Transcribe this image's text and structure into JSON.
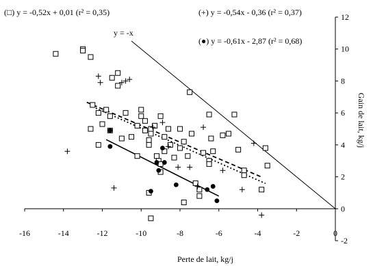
{
  "chart_data": {
    "type": "scatter",
    "xlabel": "Perte de lait, kg/j",
    "ylabel": "Gain de lait, kg/j",
    "xlim": [
      -16,
      0
    ],
    "ylim": [
      -2,
      12
    ],
    "xticks": [
      -16,
      -14,
      -12,
      -10,
      -8,
      -6,
      -4,
      -2,
      0
    ],
    "yticks": [
      -2,
      0,
      2,
      4,
      6,
      8,
      10,
      12
    ],
    "y_axis_side": "right",
    "grid": false,
    "series": [
      {
        "marker": "square",
        "points": [
          [
            -14.4,
            9.7
          ],
          [
            -13.0,
            10.0
          ],
          [
            -13.0,
            9.9
          ],
          [
            -12.6,
            9.5
          ],
          [
            -12.5,
            6.5
          ],
          [
            -12.6,
            5.0
          ],
          [
            -12.2,
            6.0
          ],
          [
            -12.0,
            5.3
          ],
          [
            -11.8,
            6.2
          ],
          [
            -11.6,
            5.8
          ],
          [
            -11.5,
            8.2
          ],
          [
            -11.2,
            7.7
          ],
          [
            -11.2,
            8.5
          ],
          [
            -11.6,
            4.9
          ],
          [
            -12.2,
            4.0
          ],
          [
            -10.8,
            6.0
          ],
          [
            -10.5,
            4.5
          ],
          [
            -10.2,
            5.2
          ],
          [
            -10.0,
            6.2
          ],
          [
            -10.0,
            5.8
          ],
          [
            -9.8,
            5.5
          ],
          [
            -9.8,
            4.9
          ],
          [
            -9.6,
            4.3
          ],
          [
            -9.6,
            4.0
          ],
          [
            -9.5,
            5.0
          ],
          [
            -9.5,
            4.7
          ],
          [
            -9.3,
            5.2
          ],
          [
            -9.2,
            3.3
          ],
          [
            -9.1,
            3.0
          ],
          [
            -9.0,
            5.8
          ],
          [
            -9.0,
            2.8
          ],
          [
            -9.0,
            2.3
          ],
          [
            -8.8,
            4.5
          ],
          [
            -8.6,
            5.0
          ],
          [
            -8.5,
            4.0
          ],
          [
            -8.3,
            3.2
          ],
          [
            -8.0,
            5.0
          ],
          [
            -8.0,
            3.8
          ],
          [
            -7.8,
            4.2
          ],
          [
            -7.6,
            3.3
          ],
          [
            -7.4,
            4.7
          ],
          [
            -7.5,
            7.3
          ],
          [
            -7.2,
            1.6
          ],
          [
            -7.0,
            1.2
          ],
          [
            -7.0,
            0.8
          ],
          [
            -6.8,
            3.5
          ],
          [
            -6.5,
            5.9
          ],
          [
            -6.5,
            3.0
          ],
          [
            -6.4,
            4.4
          ],
          [
            -6.5,
            2.8
          ],
          [
            -6.3,
            3.6
          ],
          [
            -5.8,
            4.6
          ],
          [
            -5.5,
            4.7
          ],
          [
            -5.2,
            5.9
          ],
          [
            -5.0,
            3.7
          ],
          [
            -4.7,
            2.4
          ],
          [
            -4.7,
            2.1
          ],
          [
            -3.8,
            1.2
          ],
          [
            -3.6,
            3.8
          ],
          [
            -3.5,
            2.7
          ],
          [
            -9.6,
            1.0
          ],
          [
            -9.5,
            -0.6
          ],
          [
            -7.8,
            0.4
          ],
          [
            -10.2,
            3.3
          ],
          [
            -11.0,
            4.4
          ],
          [
            -8.8,
            3.6
          ]
        ]
      },
      {
        "marker": "plus",
        "points": [
          [
            -13.8,
            3.6
          ],
          [
            -12.2,
            8.3
          ],
          [
            -12.1,
            7.9
          ],
          [
            -11.4,
            1.3
          ],
          [
            -11.0,
            7.9
          ],
          [
            -10.8,
            8.0
          ],
          [
            -10.6,
            8.1
          ],
          [
            -9.4,
            5.1
          ],
          [
            -8.9,
            5.4
          ],
          [
            -8.6,
            3.9
          ],
          [
            -8.1,
            2.6
          ],
          [
            -7.5,
            2.6
          ],
          [
            -7.1,
            1.4
          ],
          [
            -6.8,
            5.1
          ],
          [
            -5.8,
            2.4
          ],
          [
            -4.8,
            1.2
          ],
          [
            -4.2,
            4.1
          ],
          [
            -3.8,
            -0.4
          ]
        ]
      },
      {
        "marker": "dot",
        "points": [
          [
            -11.6,
            4.9
          ],
          [
            -11.6,
            3.9
          ],
          [
            -9.5,
            1.1
          ],
          [
            -9.2,
            2.9
          ],
          [
            -9.1,
            2.4
          ],
          [
            -8.9,
            3.8
          ],
          [
            -8.8,
            2.9
          ],
          [
            -8.2,
            1.5
          ],
          [
            -6.6,
            1.2
          ],
          [
            -6.3,
            1.4
          ],
          [
            -6.1,
            0.5
          ]
        ]
      }
    ],
    "fit_lines": [
      {
        "style": "dashed",
        "slope": -0.52,
        "intercept": 0.01,
        "x_range": [
          -12.8,
          -3.8
        ]
      },
      {
        "style": "dotted",
        "slope": -0.54,
        "intercept": -0.36,
        "x_range": [
          -12.5,
          -3.6
        ]
      },
      {
        "style": "solid",
        "slope": -0.61,
        "intercept": -2.87,
        "x_range": [
          -11.8,
          -6.0
        ]
      },
      {
        "style": "solid-thin",
        "slope": -1,
        "intercept": 0,
        "x_range": [
          -10.5,
          0
        ]
      }
    ],
    "annotations": {
      "eq_square": "(□) y = -0,52x + 0,01 (r² = 0,35)",
      "eq_plus": "(+) y = -0,54x - 0,36 (r² = 0,37)",
      "eq_dot": "(●) y = -0,61x - 2,87 (r² = 0,68)",
      "identity_label": "y = -x"
    }
  }
}
